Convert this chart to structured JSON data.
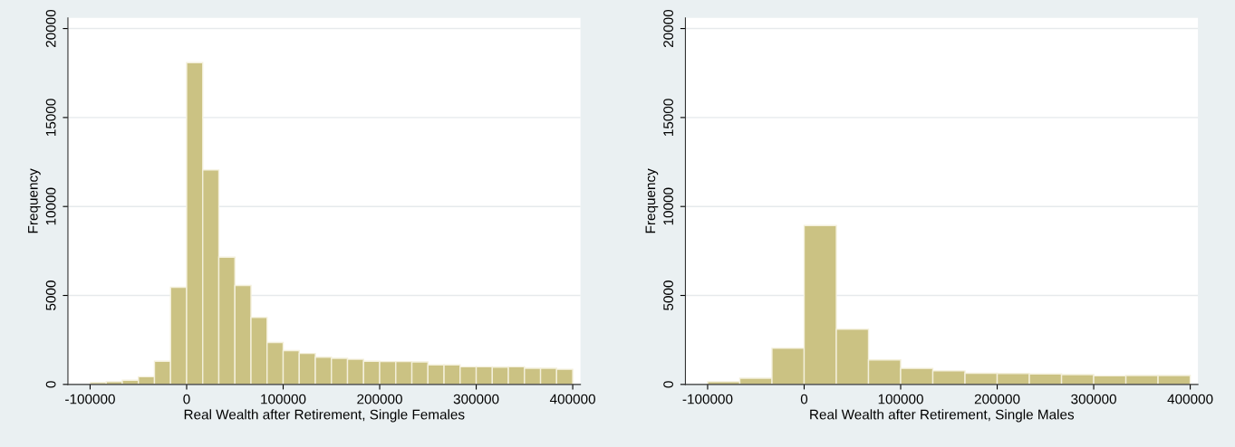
{
  "chart_data": [
    {
      "type": "histogram",
      "xlabel": "Real Wealth after Retirement, Single Females",
      "ylabel": "Frequency",
      "color": "#cbc283",
      "bins": [
        -100000,
        -83333,
        -66667,
        -50000,
        -33333,
        -16667,
        0,
        16667,
        33333,
        50000,
        66667,
        83333,
        100000,
        116667,
        133333,
        150000,
        166667,
        183333,
        200000,
        216667,
        233333,
        250000,
        266667,
        283333,
        300000,
        316667,
        333333,
        350000,
        366667,
        383333,
        400000
      ],
      "values": [
        100,
        150,
        230,
        430,
        1300,
        5460,
        18080,
        12050,
        7150,
        5560,
        3760,
        2360,
        1900,
        1740,
        1530,
        1470,
        1410,
        1300,
        1280,
        1280,
        1260,
        1100,
        1100,
        990,
        990,
        970,
        990,
        910,
        910,
        850
      ],
      "xlim": [
        -123000,
        408000
      ],
      "xticks": [
        -100000,
        0,
        100000,
        200000,
        300000,
        400000
      ],
      "ylim": [
        0,
        20600
      ],
      "yticks": [
        0,
        5000,
        10000,
        15000,
        20000
      ],
      "grid": "y"
    },
    {
      "type": "histogram",
      "xlabel": "Real Wealth after Retirement, Single Males",
      "ylabel": "Frequency",
      "color": "#cbc283",
      "bins": [
        -100000,
        -66667,
        -33333,
        0,
        33333,
        66667,
        100000,
        133333,
        166667,
        200000,
        233333,
        266667,
        300000,
        333333,
        366667,
        400000
      ],
      "values": [
        150,
        350,
        2030,
        8930,
        3100,
        1380,
        900,
        760,
        630,
        610,
        590,
        550,
        480,
        500,
        500
      ],
      "xlim": [
        -123000,
        408000
      ],
      "xticks": [
        -100000,
        0,
        100000,
        200000,
        300000,
        400000
      ],
      "ylim": [
        0,
        20600
      ],
      "yticks": [
        0,
        5000,
        10000,
        15000,
        20000
      ],
      "grid": "y"
    }
  ]
}
